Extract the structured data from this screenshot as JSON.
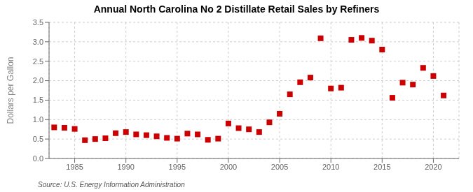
{
  "chart_data": {
    "type": "scatter",
    "title": "Annual North Carolina No 2 Distillate Retail Sales by Refiners",
    "ylabel": "Dollars per Gallon",
    "annotations": [
      "Source: U.S. Energy Information Administration"
    ],
    "x": [
      1983,
      1984,
      1985,
      1986,
      1987,
      1988,
      1989,
      1990,
      1991,
      1992,
      1993,
      1994,
      1995,
      1996,
      1997,
      1998,
      1999,
      2000,
      2001,
      2002,
      2003,
      2004,
      2005,
      2006,
      2007,
      2008,
      2009,
      2010,
      2011,
      2012,
      2013,
      2014,
      2015,
      2016,
      2017,
      2018,
      2019,
      2020,
      2021
    ],
    "values": [
      0.8,
      0.79,
      0.76,
      0.47,
      0.5,
      0.52,
      0.65,
      0.68,
      0.62,
      0.6,
      0.57,
      0.53,
      0.51,
      0.64,
      0.62,
      0.48,
      0.51,
      0.9,
      0.78,
      0.75,
      0.68,
      0.93,
      1.15,
      1.65,
      1.96,
      2.08,
      3.09,
      1.8,
      1.82,
      3.05,
      3.1,
      3.03,
      2.8,
      1.56,
      1.95,
      1.9,
      2.33,
      2.12,
      1.62
    ],
    "color": "#cc0000",
    "marker": "square",
    "xlim": [
      1982.5,
      2022.5
    ],
    "ylim": [
      0.0,
      3.5
    ],
    "xticks": [
      1985,
      1990,
      1995,
      2000,
      2005,
      2010,
      2015,
      2020
    ],
    "yticks": [
      {
        "value": 0,
        "label": "0.0"
      },
      0.5,
      {
        "value": 1,
        "label": "1.0"
      },
      1.5,
      {
        "value": 2,
        "label": "2.0"
      },
      2.5,
      {
        "value": 3,
        "label": "3.0"
      },
      3.5
    ],
    "grid": true
  }
}
